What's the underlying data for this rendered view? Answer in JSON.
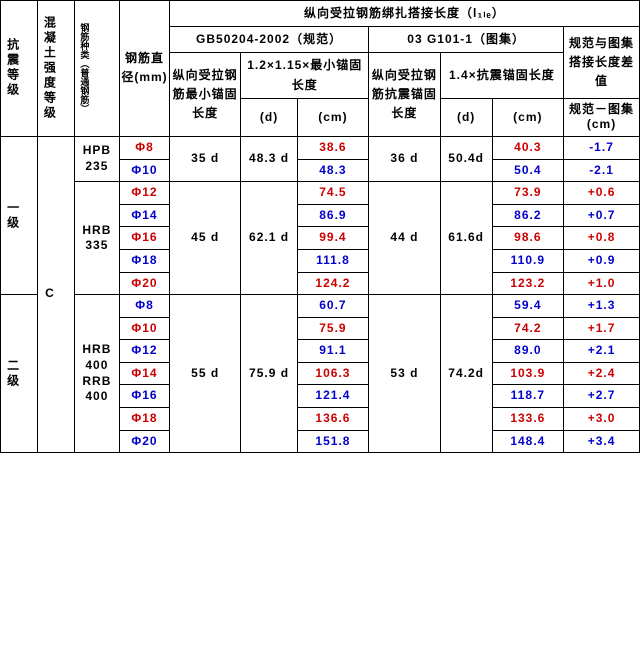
{
  "headers": {
    "col1": "抗震等级",
    "col2": "混凝土强度等级",
    "col3": "钢筋种类（普通钢筋）",
    "col4": "钢筋直径(mm)",
    "top": "纵向受拉钢筋绑扎搭接长度（l₁ₗₑ）",
    "spec1": "GB50204-2002（规范）",
    "spec2": "03 G101-1（图集）",
    "diff_top": "规范与图集搭接长度差值",
    "c5": "纵向受拉钢筋最小锚固长度",
    "c67_top": "1.2×1.15×最小锚固长度",
    "c8": "纵向受拉钢筋抗震锚固长度",
    "c910_top": "1.4×抗震锚固长度",
    "d": "(d)",
    "cm": "(cm)",
    "diff_bot": "规范－图集(cm)"
  },
  "groups": {
    "level1": "一级",
    "level2": "二级",
    "cgrade": "C",
    "rebar1": "HPB235",
    "rebar2": "HRB335",
    "rebar3": "HRB400RRB400",
    "anchor1": "35 d",
    "anchor1d": "48.3 d",
    "anchor2": "45 d",
    "anchor2d": "62.1 d",
    "anchor3": "55 d",
    "anchor3d": "75.9 d",
    "seis1": "36 d",
    "seis1d": "50.4d",
    "seis2": "44 d",
    "seis2d": "61.6d",
    "seis3": "53 d",
    "seis3d": "74.2d"
  },
  "rows": [
    {
      "dia": "Φ8",
      "c7": "38.6",
      "c10": "40.3",
      "diff": "-1.7",
      "color": "r",
      "diff_c": "b"
    },
    {
      "dia": "Φ10",
      "c7": "48.3",
      "c10": "50.4",
      "diff": "-2.1",
      "color": "b",
      "diff_c": "b"
    },
    {
      "dia": "Φ12",
      "c7": "74.5",
      "c10": "73.9",
      "diff": "+0.6",
      "color": "r",
      "diff_c": "r"
    },
    {
      "dia": "Φ14",
      "c7": "86.9",
      "c10": "86.2",
      "diff": "+0.7",
      "color": "b",
      "diff_c": "b"
    },
    {
      "dia": "Φ16",
      "c7": "99.4",
      "c10": "98.6",
      "diff": "+0.8",
      "color": "r",
      "diff_c": "r"
    },
    {
      "dia": "Φ18",
      "c7": "111.8",
      "c10": "110.9",
      "diff": "+0.9",
      "color": "b",
      "diff_c": "b"
    },
    {
      "dia": "Φ20",
      "c7": "124.2",
      "c10": "123.2",
      "diff": "+1.0",
      "color": "r",
      "diff_c": "r"
    },
    {
      "dia": "Φ8",
      "c7": "60.7",
      "c10": "59.4",
      "diff": "+1.3",
      "color": "b",
      "diff_c": "b"
    },
    {
      "dia": "Φ10",
      "c7": "75.9",
      "c10": "74.2",
      "diff": "+1.7",
      "color": "r",
      "diff_c": "r"
    },
    {
      "dia": "Φ12",
      "c7": "91.1",
      "c10": "89.0",
      "diff": "+2.1",
      "color": "b",
      "diff_c": "b"
    },
    {
      "dia": "Φ14",
      "c7": "106.3",
      "c10": "103.9",
      "diff": "+2.4",
      "color": "r",
      "diff_c": "r"
    },
    {
      "dia": "Φ16",
      "c7": "121.4",
      "c10": "118.7",
      "diff": "+2.7",
      "color": "b",
      "diff_c": "b"
    },
    {
      "dia": "Φ18",
      "c7": "136.6",
      "c10": "133.6",
      "diff": "+3.0",
      "color": "r",
      "diff_c": "r"
    },
    {
      "dia": "Φ20",
      "c7": "151.8",
      "c10": "148.4",
      "diff": "+3.4",
      "color": "b",
      "diff_c": "b"
    }
  ]
}
